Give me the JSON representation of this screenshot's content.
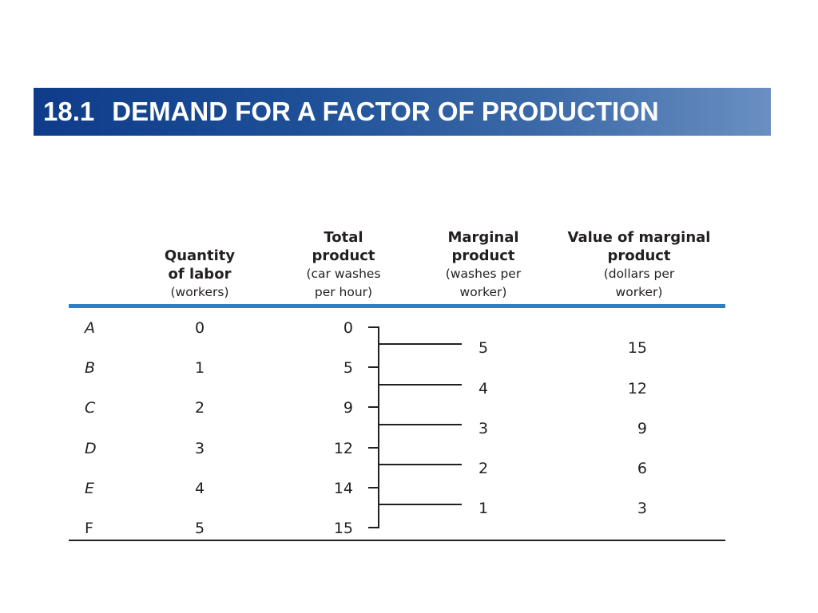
{
  "banner": {
    "section_number": "18.1",
    "title": "DEMAND FOR A FACTOR OF PRODUCTION"
  },
  "table": {
    "columns": {
      "quantity": {
        "heading": "Quantity of labor",
        "unit": "(workers)"
      },
      "total": {
        "heading": "Total product",
        "unit": "(car washes per hour)"
      },
      "marginal": {
        "heading": "Marginal product",
        "unit": "(washes per worker)"
      },
      "value": {
        "heading": "Value of marginal product",
        "unit": "(dollars per worker)"
      }
    },
    "rows": [
      {
        "label": "A",
        "quantity": "0",
        "total": "0"
      },
      {
        "label": "B",
        "quantity": "1",
        "total": "5"
      },
      {
        "label": "C",
        "quantity": "2",
        "total": "9"
      },
      {
        "label": "D",
        "quantity": "3",
        "total": "12"
      },
      {
        "label": "E",
        "quantity": "4",
        "total": "14"
      },
      {
        "label": "F",
        "quantity": "5",
        "total": "15"
      }
    ],
    "marginal_rows": [
      {
        "marginal": "5",
        "value": "15"
      },
      {
        "marginal": "4",
        "value": "12"
      },
      {
        "marginal": "3",
        "value": "9"
      },
      {
        "marginal": "2",
        "value": "6"
      },
      {
        "marginal": "1",
        "value": "3"
      }
    ]
  },
  "colors": {
    "banner_dark": "#0f3c8a",
    "banner_light": "#6a8fc2",
    "header_rule": "#2e7fc2"
  }
}
